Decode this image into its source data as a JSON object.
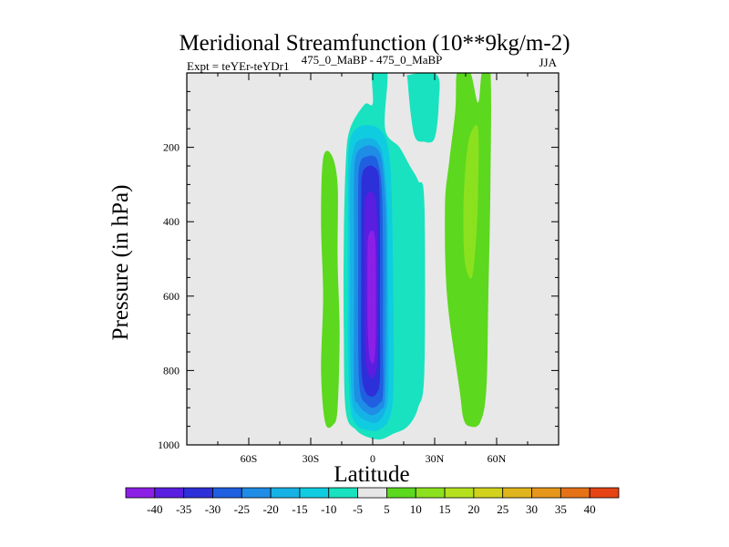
{
  "chart_data": {
    "type": "contour",
    "title": "Meridional Streamfunction (10**9kg/m-2)",
    "subtitle_left": "Expt = teYEr-teYDr1",
    "subtitle_center": "475_0_MaBP - 475_0_MaBP",
    "season": "JJA",
    "xlabel": "Latitude",
    "ylabel": "Pressure (in hPa)",
    "xlim": [
      -90,
      90
    ],
    "ylim": [
      1000,
      0
    ],
    "x_major_ticks": [
      -60,
      -30,
      0,
      30,
      60
    ],
    "x_tick_labels": [
      "60S",
      "30S",
      "0",
      "30N",
      "60N"
    ],
    "x_minor_ticks": [
      -90,
      -75,
      -45,
      -15,
      15,
      45,
      75,
      90
    ],
    "y_major_ticks": [
      200,
      400,
      600,
      800,
      1000
    ],
    "y_tick_labels": [
      "200",
      "400",
      "600",
      "800",
      "1000"
    ],
    "y_minor_ticks": [
      50,
      100,
      150,
      250,
      300,
      350,
      450,
      500,
      550,
      650,
      700,
      750,
      850,
      900,
      950
    ],
    "plot_background": "#e8e8e8",
    "contour_levels": [
      -40,
      -35,
      -30,
      -25,
      -20,
      -15,
      -10,
      -5,
      5,
      10,
      15,
      20,
      25,
      30,
      35,
      40
    ],
    "colorbar_labels": [
      "-40",
      "-35",
      "-30",
      "-25",
      "-20",
      "-15",
      "-10",
      "-5",
      "5",
      "10",
      "15",
      "20",
      "25",
      "30",
      "35",
      "40"
    ],
    "colorbar_colors": [
      "#8c1fe6",
      "#5a1ee0",
      "#2d2fd8",
      "#1f5fe0",
      "#1f8ce6",
      "#16b2e6",
      "#10cce0",
      "#19e2c0",
      "#e6e6e6",
      "#5cd81e",
      "#8ce11e",
      "#b4e01e",
      "#d2d21c",
      "#e0b41c",
      "#e6961a",
      "#e67218",
      "#e64414"
    ],
    "features": [
      {
        "name": "sh-outer-positive-cell",
        "value_class": "5 to 10",
        "lat_range": [
          -25,
          -17
        ],
        "p_range": [
          220,
          945
        ],
        "color": "#5cd81e"
      },
      {
        "name": "equatorial-negative-cell",
        "value_class": "-40 to -5",
        "core_lat": 0,
        "core_min": -40,
        "lat_range": [
          -14,
          14
        ],
        "p_range": [
          80,
          985
        ]
      },
      {
        "name": "nh-tropical-negative-band",
        "value_class": "-5",
        "lat_range": [
          0,
          25
        ],
        "p_range": [
          0,
          960
        ],
        "color": "#19e2c0"
      },
      {
        "name": "nh-upper-negative-blob",
        "value_class": "-5",
        "lat_range": [
          17,
          32
        ],
        "p_range": [
          10,
          180
        ],
        "color": "#19e2c0"
      },
      {
        "name": "nh-subtropical-positive-cell",
        "value_class": "5 to 15",
        "core_lat": 48,
        "lat_range": [
          34,
          56
        ],
        "p_range": [
          0,
          945
        ],
        "color": "#5cd81e"
      }
    ]
  }
}
